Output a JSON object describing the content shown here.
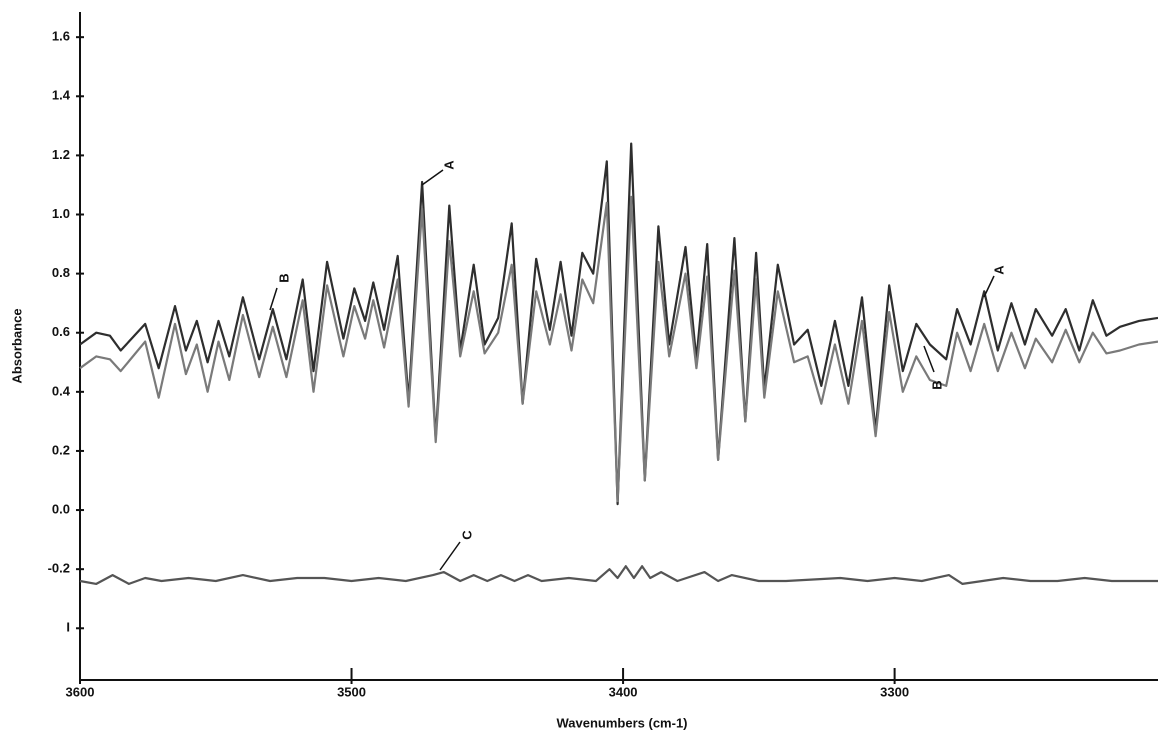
{
  "chart_data": {
    "type": "line",
    "xlabel": "Wavenumbers (cm-1)",
    "ylabel": "Absorbance",
    "xlim": [
      3600,
      3203
    ],
    "ylim": [
      -0.575,
      1.675
    ],
    "xticks": [
      3600,
      3500,
      3400,
      3300
    ],
    "yticks": [
      1.6,
      1.4,
      1.2,
      {
        "value": 1,
        "label": "1.0"
      },
      0.8,
      0.6,
      0.4,
      0.2,
      {
        "value": 0,
        "label": "0.0"
      },
      -0.2,
      {
        "value": -0.4,
        "label": "I"
      }
    ],
    "annotations": [
      "A",
      "B",
      "A",
      "B",
      "C"
    ],
    "series": [
      {
        "color": "#2e2e2e",
        "x": [
          3600,
          3594,
          3589,
          3585,
          3576,
          3571,
          3565,
          3561,
          3557,
          3553,
          3549,
          3545,
          3540,
          3534,
          3529,
          3524,
          3518,
          3514,
          3509,
          3503,
          3499,
          3495,
          3492,
          3488,
          3483,
          3479,
          3474,
          3469,
          3464,
          3460,
          3455,
          3451,
          3446,
          3441,
          3437,
          3432,
          3427,
          3423,
          3419,
          3415,
          3411,
          3406,
          3402,
          3397,
          3392,
          3387,
          3383,
          3377,
          3373,
          3369,
          3365,
          3359,
          3355,
          3351,
          3348,
          3343,
          3337,
          3332,
          3327,
          3322,
          3317,
          3312,
          3307,
          3302,
          3297,
          3292,
          3287,
          3281,
          3277,
          3272,
          3267,
          3262,
          3257,
          3252,
          3248,
          3242,
          3237,
          3232,
          3227,
          3222,
          3217,
          3210,
          3203
        ],
        "values": [
          0.56,
          0.6,
          0.59,
          0.54,
          0.63,
          0.48,
          0.69,
          0.54,
          0.64,
          0.5,
          0.64,
          0.52,
          0.72,
          0.51,
          0.68,
          0.51,
          0.78,
          0.47,
          0.84,
          0.58,
          0.75,
          0.64,
          0.77,
          0.61,
          0.86,
          0.37,
          1.11,
          0.24,
          1.03,
          0.54,
          0.83,
          0.56,
          0.65,
          0.97,
          0.36,
          0.85,
          0.61,
          0.84,
          0.59,
          0.87,
          0.8,
          1.18,
          0.02,
          1.24,
          0.1,
          0.96,
          0.56,
          0.89,
          0.51,
          0.9,
          0.17,
          0.92,
          0.3,
          0.87,
          0.41,
          0.83,
          0.56,
          0.61,
          0.42,
          0.64,
          0.42,
          0.72,
          0.27,
          0.76,
          0.47,
          0.63,
          0.56,
          0.51,
          0.68,
          0.56,
          0.74,
          0.54,
          0.7,
          0.56,
          0.68,
          0.59,
          0.68,
          0.54,
          0.71,
          0.59,
          0.62,
          0.64,
          0.65
        ]
      },
      {
        "color": "#7a7a7a",
        "x": [
          3600,
          3594,
          3589,
          3585,
          3576,
          3571,
          3565,
          3561,
          3557,
          3553,
          3549,
          3545,
          3540,
          3534,
          3529,
          3524,
          3518,
          3514,
          3509,
          3503,
          3499,
          3495,
          3492,
          3488,
          3483,
          3479,
          3474,
          3469,
          3464,
          3460,
          3455,
          3451,
          3446,
          3441,
          3437,
          3432,
          3427,
          3423,
          3419,
          3415,
          3411,
          3406,
          3402,
          3397,
          3392,
          3387,
          3383,
          3377,
          3373,
          3369,
          3365,
          3359,
          3355,
          3351,
          3348,
          3343,
          3337,
          3332,
          3327,
          3322,
          3317,
          3312,
          3307,
          3302,
          3297,
          3292,
          3287,
          3281,
          3277,
          3272,
          3267,
          3262,
          3257,
          3252,
          3248,
          3242,
          3237,
          3232,
          3227,
          3222,
          3217,
          3210,
          3203
        ],
        "values": [
          0.48,
          0.52,
          0.51,
          0.47,
          0.57,
          0.38,
          0.63,
          0.46,
          0.56,
          0.4,
          0.57,
          0.44,
          0.66,
          0.45,
          0.62,
          0.45,
          0.71,
          0.4,
          0.76,
          0.52,
          0.69,
          0.58,
          0.71,
          0.55,
          0.78,
          0.35,
          1.02,
          0.23,
          0.91,
          0.52,
          0.74,
          0.53,
          0.6,
          0.83,
          0.36,
          0.74,
          0.56,
          0.73,
          0.54,
          0.78,
          0.7,
          1.04,
          0.03,
          1.06,
          0.1,
          0.84,
          0.52,
          0.8,
          0.48,
          0.79,
          0.17,
          0.81,
          0.3,
          0.78,
          0.38,
          0.74,
          0.5,
          0.52,
          0.36,
          0.56,
          0.36,
          0.64,
          0.25,
          0.67,
          0.4,
          0.52,
          0.44,
          0.42,
          0.6,
          0.47,
          0.63,
          0.47,
          0.6,
          0.48,
          0.58,
          0.5,
          0.61,
          0.5,
          0.6,
          0.53,
          0.54,
          0.56,
          0.57
        ]
      },
      {
        "color": "#555555",
        "x": [
          3600,
          3594,
          3588,
          3582,
          3576,
          3570,
          3560,
          3550,
          3540,
          3530,
          3520,
          3510,
          3500,
          3490,
          3480,
          3470,
          3466,
          3460,
          3455,
          3450,
          3445,
          3440,
          3435,
          3430,
          3420,
          3410,
          3405,
          3402,
          3399,
          3396,
          3393,
          3390,
          3386,
          3380,
          3370,
          3365,
          3360,
          3350,
          3340,
          3320,
          3310,
          3300,
          3290,
          3280,
          3275,
          3260,
          3250,
          3240,
          3230,
          3220,
          3203
        ],
        "values": [
          -0.24,
          -0.25,
          -0.22,
          -0.25,
          -0.23,
          -0.24,
          -0.23,
          -0.24,
          -0.22,
          -0.24,
          -0.23,
          -0.23,
          -0.24,
          -0.23,
          -0.24,
          -0.22,
          -0.21,
          -0.24,
          -0.22,
          -0.24,
          -0.22,
          -0.24,
          -0.22,
          -0.24,
          -0.23,
          -0.24,
          -0.2,
          -0.23,
          -0.19,
          -0.23,
          -0.19,
          -0.23,
          -0.21,
          -0.24,
          -0.21,
          -0.24,
          -0.22,
          -0.24,
          -0.24,
          -0.23,
          -0.24,
          -0.23,
          -0.24,
          -0.22,
          -0.25,
          -0.23,
          -0.24,
          -0.24,
          -0.23,
          -0.24,
          -0.24
        ]
      }
    ]
  }
}
